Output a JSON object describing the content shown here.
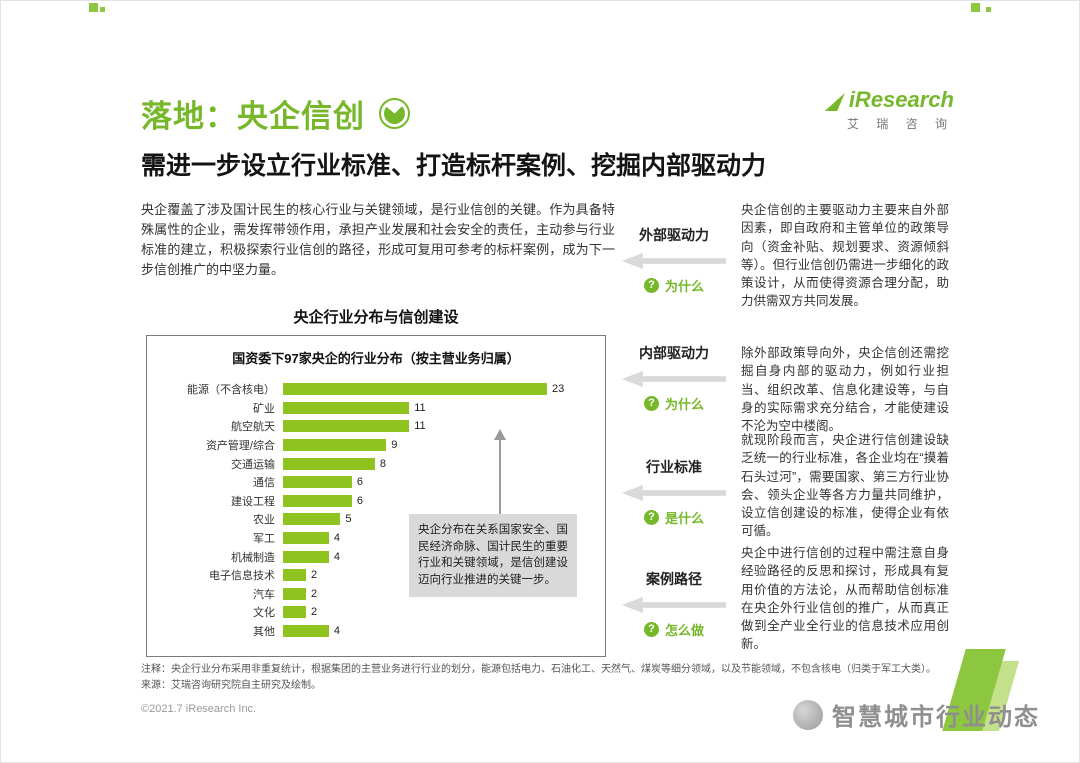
{
  "page": {
    "title": "落地：央企信创",
    "subtitle": "需进一步设立行业标准、打造标杆案例、挖掘内部驱动力",
    "copyright": "©2021.7 iResearch Inc.",
    "watermark": "智慧城市行业动态"
  },
  "logo": {
    "brand": "iResearch",
    "cn": "艾 瑞 咨 询"
  },
  "colors": {
    "accent": "#76b82a",
    "bar": "#8fc31f",
    "annotation_bg": "#d9d9d9",
    "arrow_gray": "#d9d9d9"
  },
  "icons": {
    "pie": "pie-chart",
    "question": "?"
  },
  "intro": "央企覆盖了涉及国计民生的核心行业与关键领域，是行业信创的关键。作为具备特殊属性的企业，需发挥带领作用，承担产业发展和社会安全的责任，主动参与行业标准的建立，积极探索行业信创的路径，形成可复用可参考的标杆案例，成为下一步信创推广的中坚力量。",
  "chart_section_title": "央企行业分布与信创建设",
  "chart_data": {
    "type": "bar",
    "orientation": "horizontal",
    "title": "国资委下97家央企的行业分布（按主营业务归属）",
    "categories": [
      "能源（不含核电）",
      "矿业",
      "航空航天",
      "资产管理/综合",
      "交通运输",
      "通信",
      "建设工程",
      "农业",
      "军工",
      "机械制造",
      "电子信息技术",
      "汽车",
      "文化",
      "其他"
    ],
    "values": [
      23,
      11,
      11,
      9,
      8,
      6,
      6,
      5,
      4,
      4,
      2,
      2,
      2,
      4
    ],
    "xlim": [
      0,
      23
    ],
    "grid": false,
    "legend": "none",
    "bar_color": "#8fc31f",
    "annotation": "央企分布在关系国家安全、国民经济命脉、国计民生的重要行业和关键领域，是信创建设迈向行业推进的关键一步。"
  },
  "flow": [
    {
      "label": "外部驱动力",
      "tag": "为什么",
      "text": "央企信创的主要驱动力主要来自外部因素，即自政府和主管单位的政策导向（资金补贴、规划要求、资源倾斜等）。但行业信创仍需进一步细化的政策设计，从而使得资源合理分配，助力供需双方共同发展。"
    },
    {
      "label": "内部驱动力",
      "tag": "为什么",
      "text": "除外部政策导向外，央企信创还需挖掘自身内部的驱动力，例如行业担当、组织改革、信息化建设等，与自身的实际需求充分结合，才能使建设不沦为空中楼阁。"
    },
    {
      "label": "行业标准",
      "tag": "是什么",
      "text": "就现阶段而言，央企进行信创建设缺乏统一的行业标准，各企业均在“摸着石头过河”，需要国家、第三方行业协会、领头企业等各方力量共同维护，设立信创建设的标准，使得企业有依可循。"
    },
    {
      "label": "案例路径",
      "tag": "怎么做",
      "text": "央企中进行信创的过程中需注意自身经验路径的反思和探讨，形成具有复用价值的方法论，从而帮助信创标准在央企外行业信创的推广，从而真正做到全产业全行业的信息技术应用创新。"
    }
  ],
  "footnote": {
    "line1": "注释：央企行业分布采用非重复统计，根据集团的主营业务进行行业的划分，能源包括电力、石油化工、天然气、煤炭等细分领域，以及节能领域，不包含核电（归类于军工大类）。",
    "line2": "来源：艾瑞咨询研究院自主研究及绘制。"
  }
}
